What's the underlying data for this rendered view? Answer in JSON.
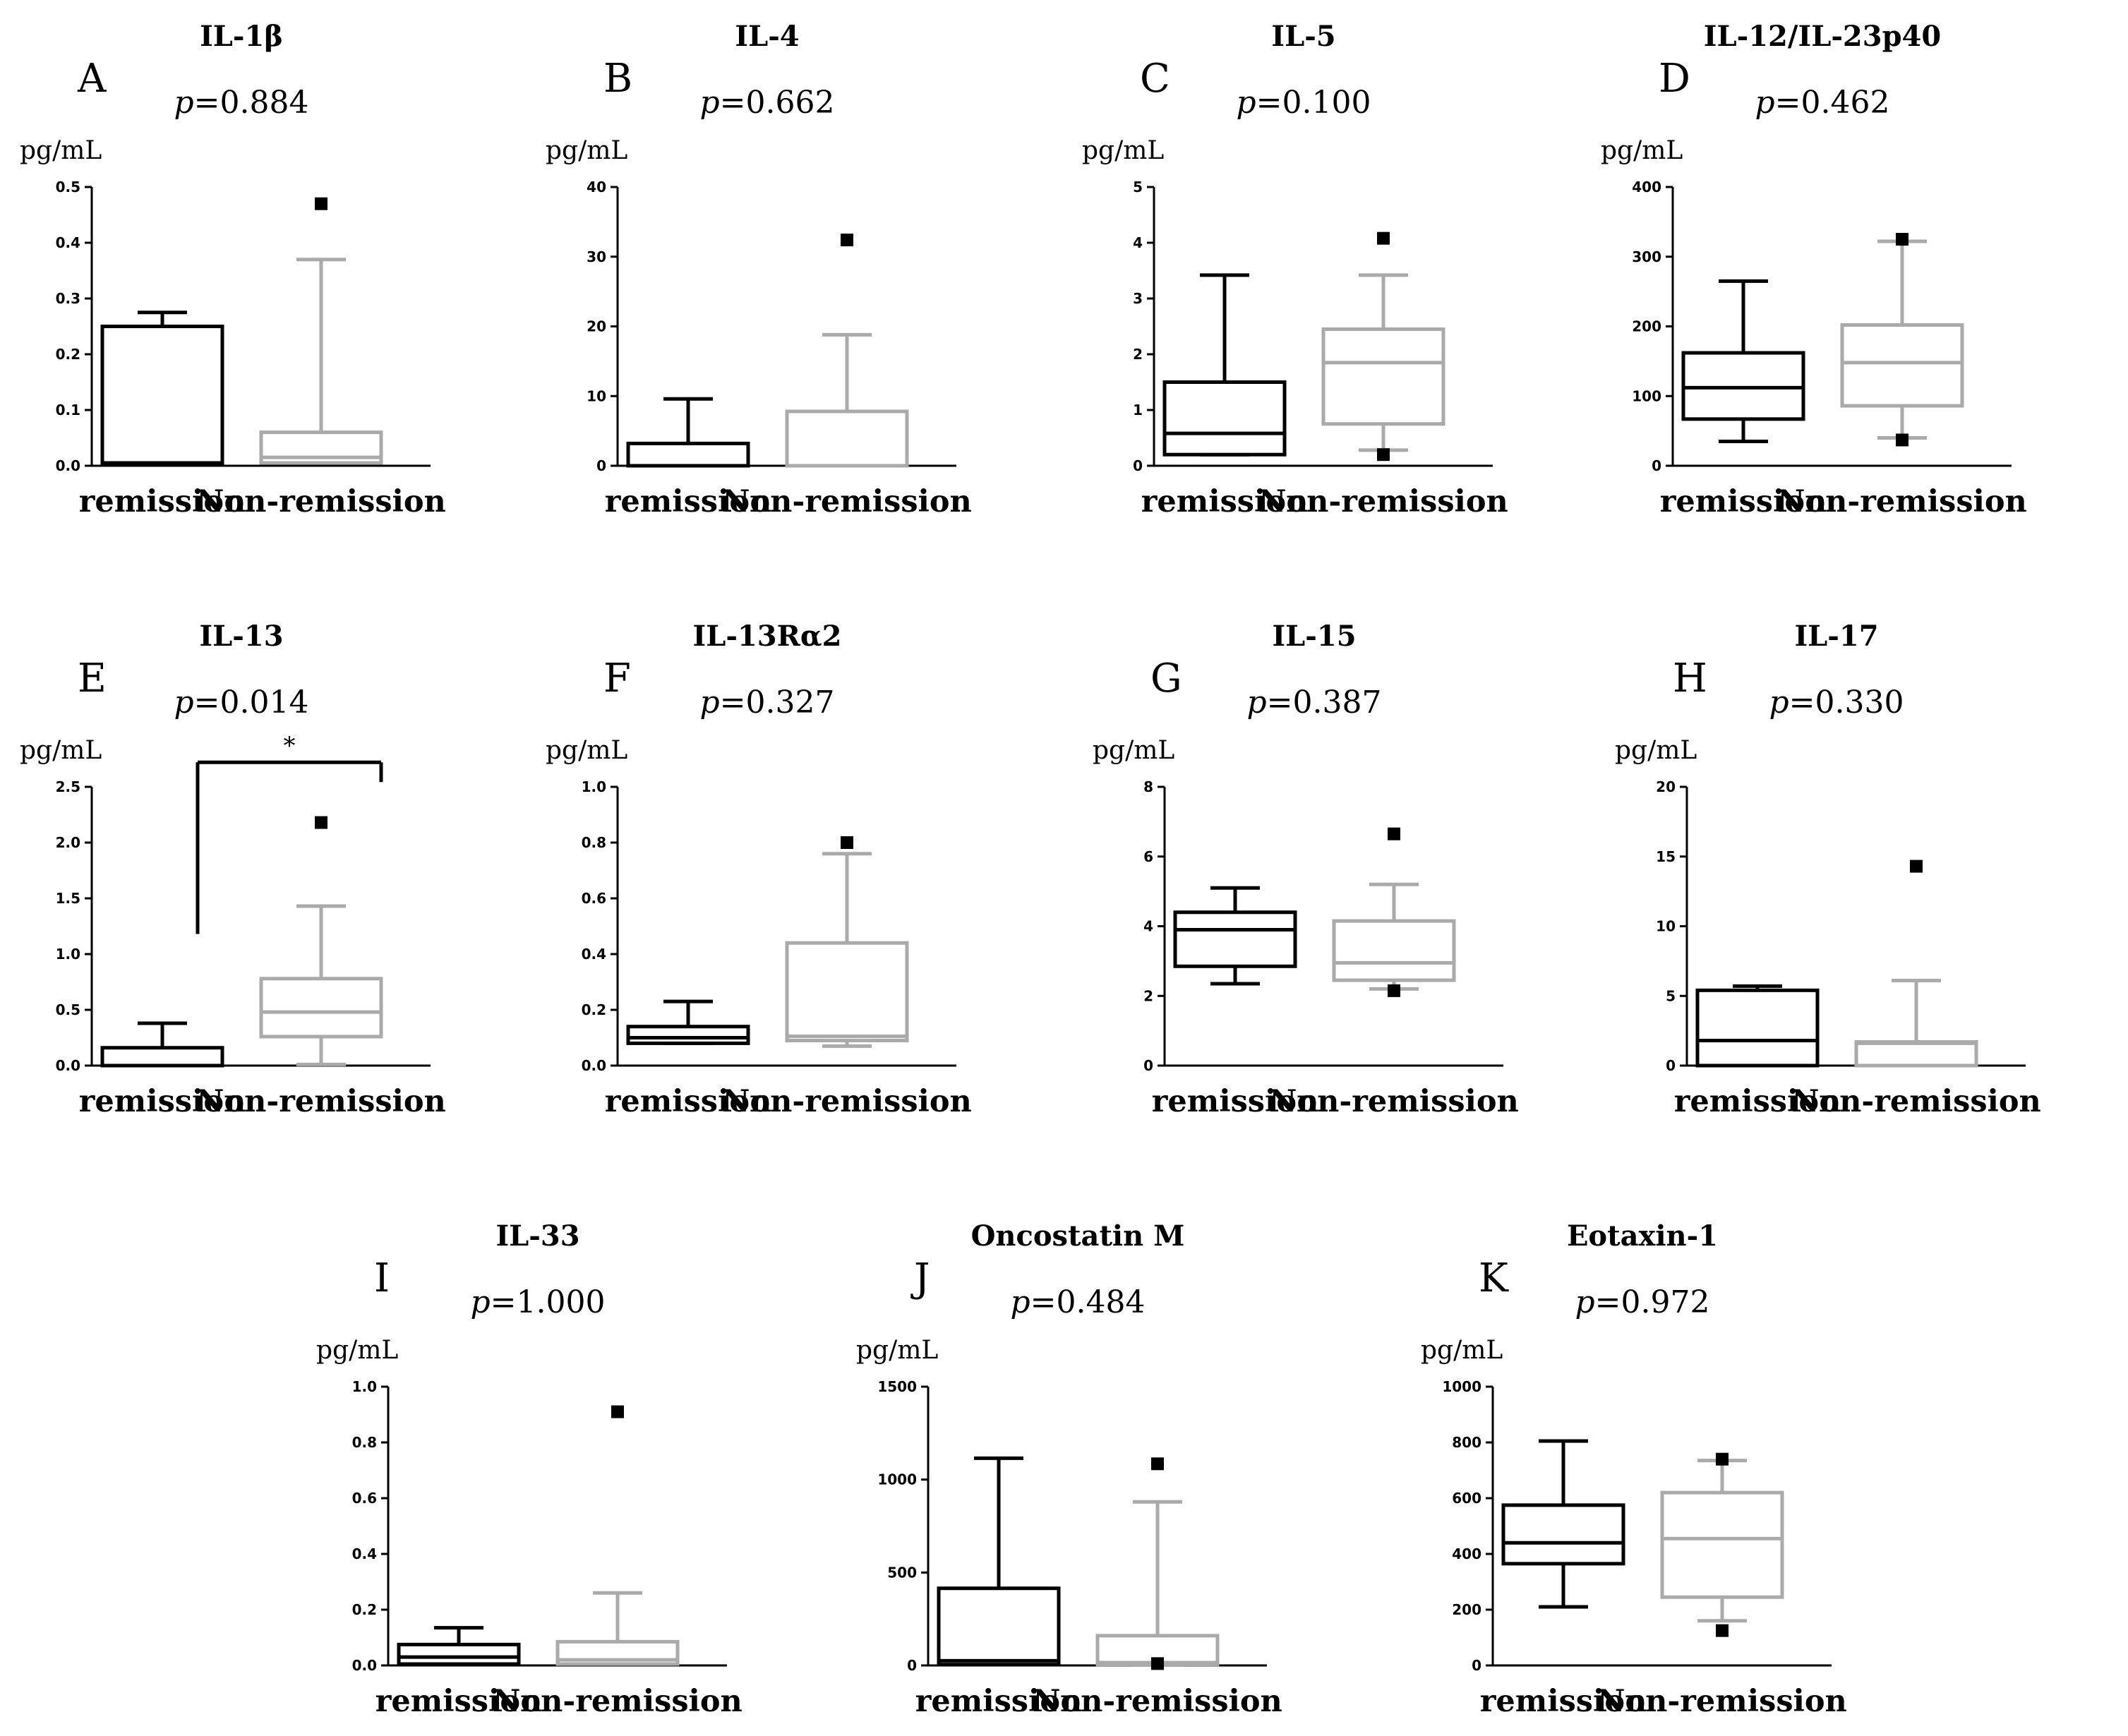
{
  "figure": {
    "unit": "pg/mL",
    "p_prefix": "p"
  },
  "chart_data": [
    {
      "type": "box",
      "letter": "A",
      "title": "IL-1β",
      "p_value": "=0.884",
      "ylabel": "pg/mL",
      "ylim": [
        0,
        0.5
      ],
      "yticks": [
        "0.0",
        "0.1",
        "0.2",
        "0.3",
        "0.4",
        "0.5"
      ],
      "categories": [
        "remission",
        "Non-remission"
      ],
      "series": [
        {
          "name": "remission",
          "color": "#000000",
          "q1": 0.005,
          "median": 0.005,
          "q3": 0.25,
          "whisker_low": 0.005,
          "whisker_high": 0.275,
          "outliers": []
        },
        {
          "name": "Non-remission",
          "color": "#aaaaaa",
          "q1": 0.005,
          "median": 0.015,
          "q3": 0.06,
          "whisker_low": 0.005,
          "whisker_high": 0.37,
          "outliers": [
            0.47
          ]
        }
      ]
    },
    {
      "type": "box",
      "letter": "B",
      "title": "IL-4",
      "p_value": "=0.662",
      "ylabel": "pg/mL",
      "ylim": [
        0,
        40
      ],
      "yticks": [
        "0",
        "10",
        "20",
        "30",
        "40"
      ],
      "categories": [
        "remission",
        "Non-remission"
      ],
      "series": [
        {
          "name": "remission",
          "color": "#000000",
          "q1": 0,
          "median": 0,
          "q3": 3.2,
          "whisker_low": 0,
          "whisker_high": 9.6,
          "outliers": []
        },
        {
          "name": "Non-remission",
          "color": "#aaaaaa",
          "q1": 0,
          "median": 0,
          "q3": 7.8,
          "whisker_low": 0,
          "whisker_high": 18.8,
          "outliers": [
            32.4
          ]
        }
      ]
    },
    {
      "type": "box",
      "letter": "C",
      "title": "IL-5",
      "p_value": "=0.100",
      "ylabel": "pg/mL",
      "ylim": [
        0,
        5
      ],
      "yticks": [
        "0",
        "1",
        "2",
        "3",
        "4",
        "5"
      ],
      "categories": [
        "remission",
        "Non-remission"
      ],
      "series": [
        {
          "name": "remission",
          "color": "#000000",
          "q1": 0.2,
          "median": 0.58,
          "q3": 1.5,
          "whisker_low": 0.2,
          "whisker_high": 3.42,
          "outliers": []
        },
        {
          "name": "Non-remission",
          "color": "#aaaaaa",
          "q1": 0.75,
          "median": 1.85,
          "q3": 2.45,
          "whisker_low": 0.28,
          "whisker_high": 3.42,
          "outliers": [
            4.08,
            0.2
          ]
        }
      ]
    },
    {
      "type": "box",
      "letter": "D",
      "title": "IL-12/IL-23p40",
      "p_value": "=0.462",
      "ylabel": "pg/mL",
      "ylim": [
        0,
        400
      ],
      "yticks": [
        "0",
        "100",
        "200",
        "300",
        "400"
      ],
      "categories": [
        "remission",
        "Non-remission"
      ],
      "series": [
        {
          "name": "remission",
          "color": "#000000",
          "q1": 67,
          "median": 112,
          "q3": 162,
          "whisker_low": 35,
          "whisker_high": 265,
          "outliers": []
        },
        {
          "name": "Non-remission",
          "color": "#aaaaaa",
          "q1": 86,
          "median": 148,
          "q3": 202,
          "whisker_low": 40,
          "whisker_high": 322,
          "outliers": [
            325,
            37
          ]
        }
      ]
    },
    {
      "type": "box",
      "letter": "E",
      "title": "IL-13",
      "p_value": "=0.014",
      "ylabel": "pg/mL",
      "ylim": [
        0,
        2.5
      ],
      "yticks": [
        "0.0",
        "0.5",
        "1.0",
        "1.5",
        "2.0",
        "2.5"
      ],
      "categories": [
        "remission",
        "Non-remission"
      ],
      "significance": {
        "label": "*",
        "y_left": 1.18,
        "y_right": 2.72,
        "y_bar": 2.72
      },
      "series": [
        {
          "name": "remission",
          "color": "#000000",
          "q1": 0,
          "median": 0,
          "q3": 0.16,
          "whisker_low": 0,
          "whisker_high": 0.38,
          "outliers": []
        },
        {
          "name": "Non-remission",
          "color": "#aaaaaa",
          "q1": 0.26,
          "median": 0.48,
          "q3": 0.78,
          "whisker_low": 0.01,
          "whisker_high": 1.43,
          "outliers": [
            2.18
          ]
        }
      ]
    },
    {
      "type": "box",
      "letter": "F",
      "title": "IL-13Rα2",
      "p_value": "=0.327",
      "ylabel": "pg/mL",
      "ylim": [
        0,
        1.0
      ],
      "yticks": [
        "0.0",
        "0.2",
        "0.4",
        "0.6",
        "0.8",
        "1.0"
      ],
      "categories": [
        "remission",
        "Non-remission"
      ],
      "series": [
        {
          "name": "remission",
          "color": "#000000",
          "q1": 0.08,
          "median": 0.1,
          "q3": 0.14,
          "whisker_low": 0.08,
          "whisker_high": 0.23,
          "outliers": []
        },
        {
          "name": "Non-remission",
          "color": "#aaaaaa",
          "q1": 0.09,
          "median": 0.105,
          "q3": 0.44,
          "whisker_low": 0.07,
          "whisker_high": 0.76,
          "outliers": [
            0.8
          ]
        }
      ]
    },
    {
      "type": "box",
      "letter": "G",
      "title": "IL-15",
      "p_value": "=0.387",
      "ylabel": "pg/mL",
      "ylim": [
        0,
        8
      ],
      "yticks": [
        "0",
        "2",
        "4",
        "6",
        "8"
      ],
      "categories": [
        "remission",
        "Non-remission"
      ],
      "series": [
        {
          "name": "remission",
          "color": "#000000",
          "q1": 2.85,
          "median": 3.9,
          "q3": 4.4,
          "whisker_low": 2.35,
          "whisker_high": 5.1,
          "outliers": []
        },
        {
          "name": "Non-remission",
          "color": "#aaaaaa",
          "q1": 2.45,
          "median": 2.95,
          "q3": 4.15,
          "whisker_low": 2.2,
          "whisker_high": 5.2,
          "outliers": [
            6.65,
            2.15
          ]
        }
      ]
    },
    {
      "type": "box",
      "letter": "H",
      "title": "IL-17",
      "p_value": "=0.330",
      "ylabel": "pg/mL",
      "ylim": [
        0,
        20
      ],
      "yticks": [
        "0",
        "5",
        "10",
        "15",
        "20"
      ],
      "categories": [
        "remission",
        "Non-remission"
      ],
      "series": [
        {
          "name": "remission",
          "color": "#000000",
          "q1": 0,
          "median": 1.8,
          "q3": 5.4,
          "whisker_low": 0,
          "whisker_high": 5.7,
          "outliers": []
        },
        {
          "name": "Non-remission",
          "color": "#aaaaaa",
          "q1": 0,
          "median": 1.6,
          "q3": 1.7,
          "whisker_low": 0,
          "whisker_high": 6.1,
          "outliers": [
            14.3
          ]
        }
      ]
    },
    {
      "type": "box",
      "letter": "I",
      "title": "IL-33",
      "p_value": "=1.000",
      "ylabel": "pg/mL",
      "ylim": [
        0,
        1.0
      ],
      "yticks": [
        "0.0",
        "0.2",
        "0.4",
        "0.6",
        "0.8",
        "1.0"
      ],
      "categories": [
        "remission",
        "Non-remission"
      ],
      "series": [
        {
          "name": "remission",
          "color": "#000000",
          "q1": 0.005,
          "median": 0.03,
          "q3": 0.075,
          "whisker_low": 0.005,
          "whisker_high": 0.135,
          "outliers": []
        },
        {
          "name": "Non-remission",
          "color": "#aaaaaa",
          "q1": 0.005,
          "median": 0.02,
          "q3": 0.085,
          "whisker_low": 0.005,
          "whisker_high": 0.26,
          "outliers": [
            0.91
          ]
        }
      ]
    },
    {
      "type": "box",
      "letter": "J",
      "title": "Oncostatin M",
      "p_value": "=0.484",
      "ylabel": "pg/mL",
      "ylim": [
        0,
        1500
      ],
      "yticks": [
        "0",
        "500",
        "1000",
        "1500"
      ],
      "categories": [
        "remission",
        "Non-remission"
      ],
      "series": [
        {
          "name": "remission",
          "color": "#000000",
          "q1": 5,
          "median": 25,
          "q3": 415,
          "whisker_low": 5,
          "whisker_high": 1115,
          "outliers": []
        },
        {
          "name": "Non-remission",
          "color": "#aaaaaa",
          "q1": 5,
          "median": 15,
          "q3": 160,
          "whisker_low": 5,
          "whisker_high": 880,
          "outliers": [
            1085,
            10
          ]
        }
      ]
    },
    {
      "type": "box",
      "letter": "K",
      "title": "Eotaxin-1",
      "p_value": "=0.972",
      "ylabel": "pg/mL",
      "ylim": [
        0,
        1000
      ],
      "yticks": [
        "0",
        "200",
        "400",
        "600",
        "800",
        "1000"
      ],
      "categories": [
        "remission",
        "Non-remission"
      ],
      "series": [
        {
          "name": "remission",
          "color": "#000000",
          "q1": 365,
          "median": 440,
          "q3": 575,
          "whisker_low": 210,
          "whisker_high": 805,
          "outliers": []
        },
        {
          "name": "Non-remission",
          "color": "#aaaaaa",
          "q1": 245,
          "median": 455,
          "q3": 620,
          "whisker_low": 160,
          "whisker_high": 735,
          "outliers": [
            740,
            125
          ]
        }
      ]
    }
  ]
}
